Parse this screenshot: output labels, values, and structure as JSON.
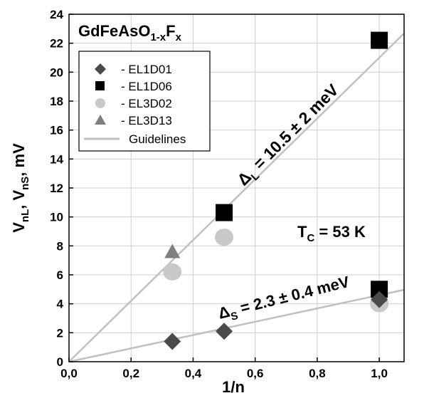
{
  "chart_data": {
    "type": "scatter",
    "title": "GdFeAsO",
    "title_sub": "1-x",
    "title_mid": "F",
    "title_sub2": "x",
    "xlabel": "1/n",
    "ylabel_parts": [
      "V",
      "nL",
      ", V",
      "nS",
      ", mV"
    ],
    "xlim": [
      0,
      1.08
    ],
    "ylim": [
      0,
      24
    ],
    "grid": true,
    "x_ticks": [
      0,
      0.2,
      0.4,
      0.6,
      0.8,
      1.0
    ],
    "x_tick_labels": [
      "0,0",
      "0,2",
      "0,4",
      "0,6",
      "0,8",
      "1,0"
    ],
    "y_ticks": [
      0,
      2,
      4,
      6,
      8,
      10,
      12,
      14,
      16,
      18,
      20,
      22,
      24
    ],
    "y_tick_labels": [
      "0",
      "2",
      "4",
      "6",
      "8",
      "10",
      "12",
      "14",
      "16",
      "18",
      "20",
      "22",
      "24"
    ],
    "series": [
      {
        "name": "- EL1D01",
        "marker": "diamond",
        "color": "#4a4a4a",
        "points": [
          [
            0.333,
            1.4
          ],
          [
            0.5,
            2.1
          ],
          [
            1.0,
            4.3
          ]
        ]
      },
      {
        "name": "- EL1D06",
        "marker": "square",
        "color": "#000000",
        "points": [
          [
            0.5,
            10.3
          ],
          [
            1.0,
            22.2
          ],
          [
            1.0,
            5.0
          ]
        ]
      },
      {
        "name": "- EL3D02",
        "marker": "circle",
        "color": "#c8c8c8",
        "points": [
          [
            0.333,
            6.2
          ],
          [
            0.5,
            8.6
          ],
          [
            1.0,
            4.0
          ]
        ]
      },
      {
        "name": "- EL3D13",
        "marker": "triangle",
        "color": "#7f7f7f",
        "points": [
          [
            0.333,
            7.6
          ],
          [
            0.5,
            10.2
          ],
          [
            1.0,
            4.6
          ]
        ]
      }
    ],
    "guidelines": {
      "name": "Guidelines",
      "color": "#c0c0c0",
      "lines": [
        {
          "slope": 21.0,
          "intercept": 0
        },
        {
          "slope": 4.6,
          "intercept": 0
        }
      ]
    },
    "legend_placement": "top-left",
    "annotations": {
      "delta_L": {
        "symbol": "Δ",
        "sub": "L",
        "text": " = 10.5 ± 2 meV"
      },
      "delta_S": {
        "symbol": "Δ",
        "sub": "S",
        "text": " = 2.3 ± 0.4 meV"
      },
      "tc": {
        "main": "T",
        "sub": "C",
        "text": " = 53 K"
      }
    }
  }
}
